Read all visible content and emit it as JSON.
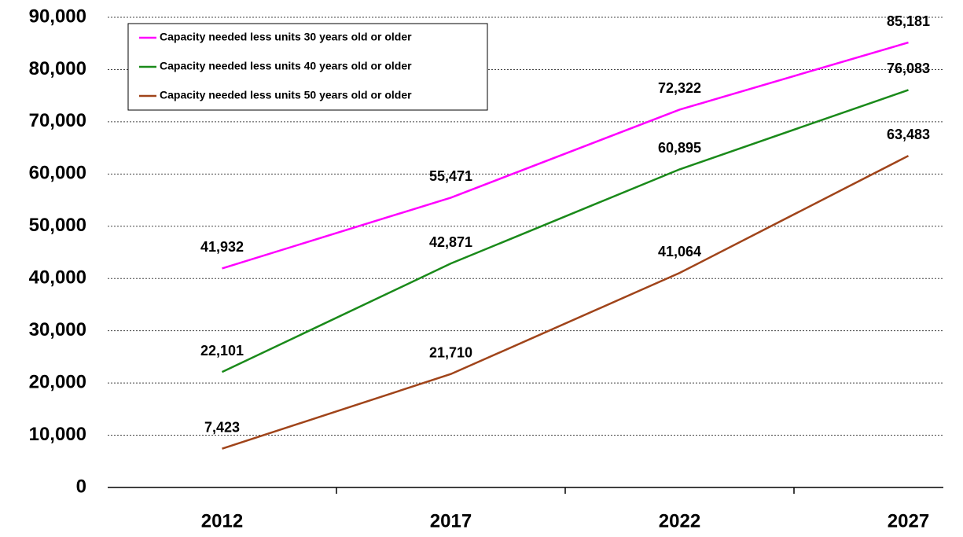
{
  "chart_data": {
    "type": "line",
    "categories": [
      "2012",
      "2017",
      "2022",
      "2027"
    ],
    "series": [
      {
        "name": "Capacity needed less units 30 years old or older",
        "color": "#ff00ff",
        "values": [
          41932,
          55471,
          72322,
          85181
        ],
        "value_labels": [
          "41,932",
          "55,471",
          "72,322",
          "85,181"
        ]
      },
      {
        "name": "Capacity needed less units 40 years old or older",
        "color": "#1a8a1a",
        "values": [
          22101,
          42871,
          60895,
          76083
        ],
        "value_labels": [
          "22,101",
          "42,871",
          "60,895",
          "76,083"
        ]
      },
      {
        "name": "Capacity needed less units 50 years old or older",
        "color": "#a0441a",
        "values": [
          7423,
          21710,
          41064,
          63483
        ],
        "value_labels": [
          "7,423",
          "21,710",
          "41,064",
          "63,483"
        ]
      }
    ],
    "ylim": [
      0,
      90000
    ],
    "yticks": [
      0,
      {
        "value": 10000,
        "label": "10,000"
      },
      {
        "value": 20000,
        "label": "20,000"
      },
      {
        "value": 30000,
        "label": "30,000"
      },
      {
        "value": 40000,
        "label": "40,000"
      },
      {
        "value": 50000,
        "label": "50,000"
      },
      {
        "value": 60000,
        "label": "60,000"
      },
      {
        "value": 70000,
        "label": "70,000"
      },
      {
        "value": 80000,
        "label": "80,000"
      },
      {
        "value": 90000,
        "label": "90,000"
      }
    ],
    "grid": true,
    "legend": "top-left"
  }
}
